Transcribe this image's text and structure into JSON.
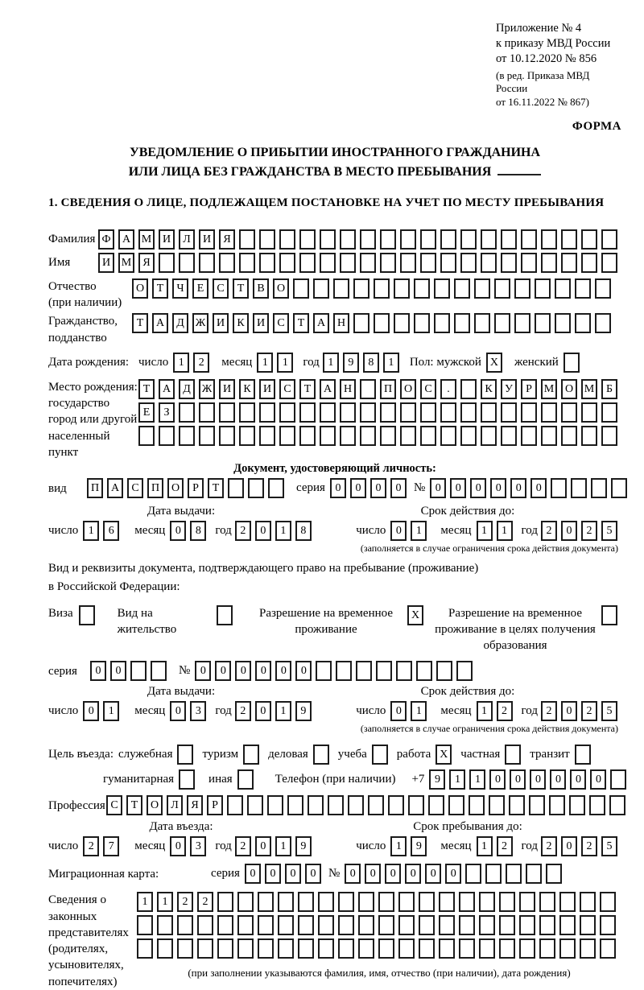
{
  "meta": {
    "appendix_line1": "Приложение № 4",
    "appendix_line2": "к приказу МВД России",
    "appendix_line3": "от 10.12.2020 № 856",
    "revision_line1": "(в ред. Приказа МВД России",
    "revision_line2": "от 16.11.2022 № 867)",
    "forma": "ФОРМА"
  },
  "title": {
    "line1": "УВЕДОМЛЕНИЕ О ПРИБЫТИИ ИНОСТРАННОГО ГРАЖДАНИНА",
    "line2": "ИЛИ ЛИЦА БЕЗ ГРАЖДАНСТВА В МЕСТО ПРЕБЫВАНИЯ"
  },
  "section1_heading": "1. СВЕДЕНИЯ О ЛИЦЕ, ПОДЛЕЖАЩЕМ ПОСТАНОВКЕ НА УЧЕТ ПО МЕСТУ ПРЕБЫВАНИЯ",
  "labels": {
    "surname": "Фамилия",
    "name": "Имя",
    "patronymic": "Отчество",
    "patronymic_note": "(при наличии)",
    "citizenship1": "Гражданство,",
    "citizenship2": "подданство",
    "birth_date": "Дата рождения:",
    "day": "число",
    "month": "месяц",
    "year": "год",
    "sex": "Пол: мужской",
    "female": "женский",
    "birth_place1": "Место рождения:",
    "birth_place2": "государство",
    "birth_place3": "город или другой",
    "birth_place4": "населенный пункт",
    "identity_doc_heading": "Документ, удостоверяющий личность:",
    "doc_type": "вид",
    "series": "серия",
    "number": "№",
    "issue_date": "Дата выдачи:",
    "valid_until": "Срок действия до:",
    "valid_note": "(заполняется в случае ограничения срока действия документа)",
    "residence_doc_line1": "Вид и реквизиты документа, подтверждающего право на пребывание (проживание)",
    "residence_doc_line2": "в Российской Федерации:",
    "visa": "Виза",
    "residence_permit": "Вид на жительство",
    "temp_residence": "Разрешение на временное проживание",
    "temp_residence_edu": "Разрешение на временное проживание в целях получения образования",
    "entry_purpose": "Цель въезда:",
    "phone": "Телефон (при наличии)",
    "phone_prefix": "+7",
    "profession": "Профессия",
    "entry_date": "Дата въезда:",
    "stay_until": "Срок пребывания до:",
    "migration_card": "Миграционная карта:",
    "legal_reps": "Сведения о законных представителях (родителях, усыновителях, попечителях)",
    "legal_reps_note": "(при заполнении указываются фамилия, имя, отчество (при наличии), дата рождения)"
  },
  "entry_purposes": [
    {
      "label": "служебная",
      "checked": ""
    },
    {
      "label": "туризм",
      "checked": ""
    },
    {
      "label": "деловая",
      "checked": ""
    },
    {
      "label": "учеба",
      "checked": ""
    },
    {
      "label": "работа",
      "checked": "X"
    },
    {
      "label": "частная",
      "checked": ""
    },
    {
      "label": "транзит",
      "checked": ""
    }
  ],
  "entry_purposes2": [
    {
      "label": "гуманитарная",
      "checked": ""
    },
    {
      "label": "иная",
      "checked": ""
    }
  ],
  "values": {
    "surname": "ФАМИЛИЯ",
    "name": "ИМЯ",
    "patronymic": "ОТЧЕСТВО",
    "citizenship": "ТАДЖИКИСТАН",
    "birth_day": "12",
    "birth_month": "11",
    "birth_year": "1981",
    "sex_male": "X",
    "sex_female": "",
    "birth_place_row1": "ТАДЖИКИСТАН ПОС. КУРМОМБ",
    "birth_place_row2": "ЕЗ",
    "birth_place_row3": "",
    "id_doc_type": "ПАСПОРТ",
    "id_series": "0000",
    "id_number": "000000",
    "id_issue_day": "16",
    "id_issue_month": "08",
    "id_issue_year": "2018",
    "id_valid_day": "01",
    "id_valid_month": "11",
    "id_valid_year": "2025",
    "visa_checked": "",
    "residence_permit_checked": "",
    "temp_residence_checked": "X",
    "temp_residence_edu_checked": "",
    "res_series": "00",
    "res_number": "000000",
    "res_issue_day": "01",
    "res_issue_month": "03",
    "res_issue_year": "2019",
    "res_valid_day": "01",
    "res_valid_month": "12",
    "res_valid_year": "2025",
    "phone_digits": "911000000",
    "profession": "СТОЛЯР",
    "entry_day": "27",
    "entry_month": "03",
    "entry_year": "2019",
    "stay_day": "19",
    "stay_month": "12",
    "stay_year": "2025",
    "mig_series": "0000",
    "mig_number": "000000",
    "legal_reps_row1": "1122",
    "legal_reps_row2": "",
    "legal_reps_row3": ""
  }
}
